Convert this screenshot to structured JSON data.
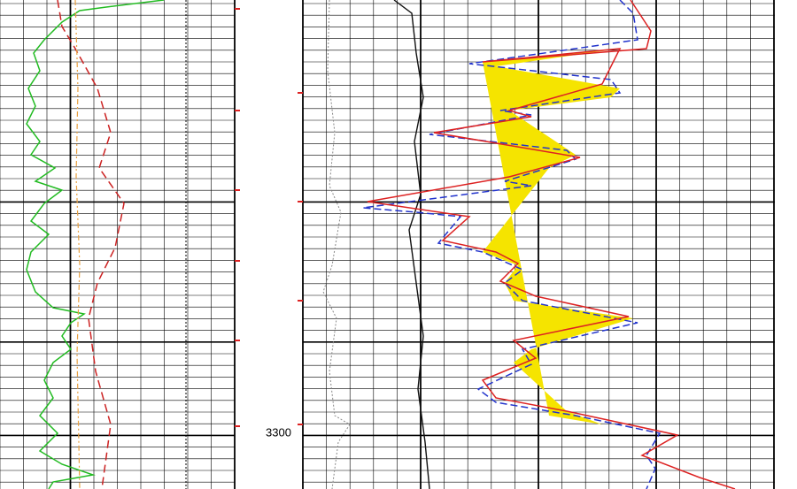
{
  "depth_label": "3300"
}
